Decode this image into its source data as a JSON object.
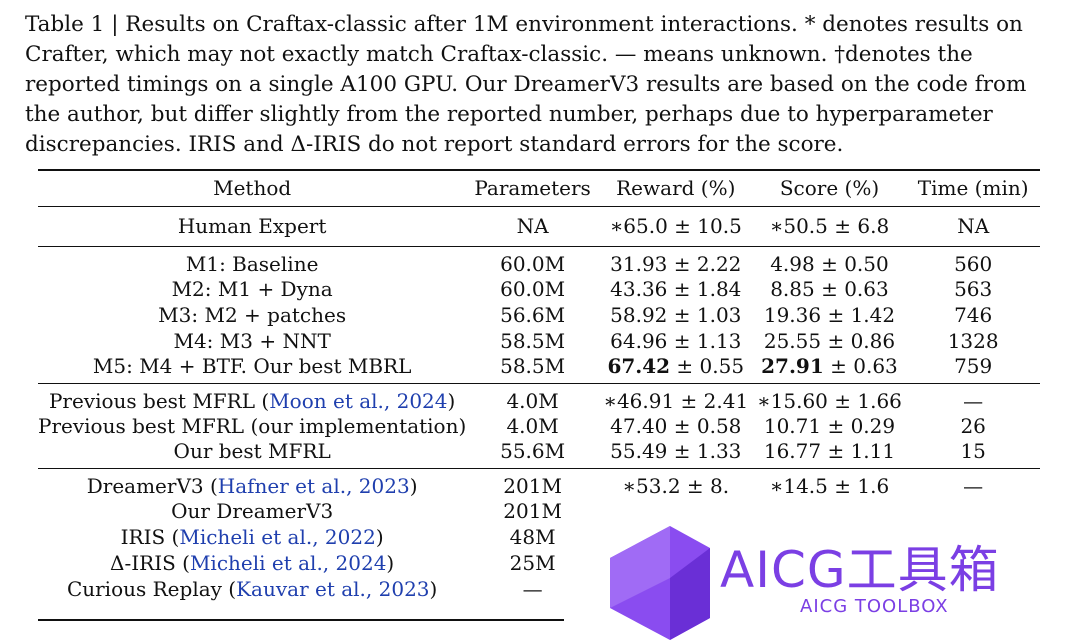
{
  "caption": "Table 1 | Results on Craftax-classic after 1M environment interactions. * denotes results on Crafter, which may not exactly match Craftax-classic. — means unknown. †denotes the reported timings on a single A100 GPU. Our DreamerV3 results are based on the code from the author, but differ slightly from the reported number, perhaps due to hyperparameter discrepancies. IRIS and Δ-IRIS do not report standard errors for the score.",
  "header": [
    "Method",
    "Parameters",
    "Reward (%)",
    "Score (%)",
    "Time (min)"
  ],
  "human": {
    "method": "Human Expert",
    "params": "NA",
    "reward": "∗65.0 ± 10.5",
    "score": "∗50.5 ± 6.8",
    "time": "NA"
  },
  "group1": [
    {
      "method": "M1: Baseline",
      "params": "60.0M",
      "reward": "31.93 ± 2.22",
      "score": "4.98 ± 0.50",
      "time": "560"
    },
    {
      "method": "M2: M1 + Dyna",
      "params": "60.0M",
      "reward": "43.36 ± 1.84",
      "score": "8.85 ± 0.63",
      "time": "563"
    },
    {
      "method": "M3: M2 + patches",
      "params": "56.6M",
      "reward": "58.92 ± 1.03",
      "score": "19.36 ± 1.42",
      "time": "746"
    },
    {
      "method": "M4: M3 + NNT",
      "params": "58.5M",
      "reward": "64.96 ± 1.13",
      "score": "25.55 ± 0.86",
      "time": "1328"
    },
    {
      "method": "M5: M4 + BTF. Our best MBRL",
      "params": "58.5M",
      "reward_bold": "67.42",
      "reward_err": " ± 0.55",
      "score_bold": "27.91",
      "score_err": " ± 0.63",
      "time": "759"
    }
  ],
  "group2": [
    {
      "method_pre": "Previous best MFRL (",
      "cite": "Moon et al., 2024",
      "method_post": ")",
      "params": "4.0M",
      "reward": "∗46.91 ± 2.41",
      "score": "∗15.60 ± 1.66",
      "time": "—"
    },
    {
      "method": "Previous best MFRL (our implementation)",
      "params": "4.0M",
      "reward": "47.40 ± 0.58",
      "score": "10.71 ± 0.29",
      "time": "26"
    },
    {
      "method": "Our best MFRL",
      "params": "55.6M",
      "reward": "55.49 ± 1.33",
      "score": "16.77 ± 1.11",
      "time": "15"
    }
  ],
  "group3": [
    {
      "method_pre": "DreamerV3 (",
      "cite": "Hafner et al., 2023",
      "method_post": ")",
      "params": "201M",
      "reward": "∗53.2 ± 8.",
      "score": "∗14.5 ± 1.6",
      "time": "—"
    },
    {
      "method": "Our DreamerV3",
      "params": "201M"
    },
    {
      "method_pre": "IRIS (",
      "cite": "Micheli et al., 2022",
      "method_post": ")",
      "params": "48M"
    },
    {
      "method_pre": "Δ-IRIS (",
      "cite": "Micheli et al., 2024",
      "method_post": ")",
      "params": "25M"
    },
    {
      "method_pre": "Curious Replay (",
      "cite": "Kauvar et al., 2023",
      "method_post": ")",
      "params": "—"
    }
  ],
  "watermark": {
    "title": "AICG工具箱",
    "subtitle": "AICG TOOLBOX",
    "color": "#7b3fe4"
  }
}
